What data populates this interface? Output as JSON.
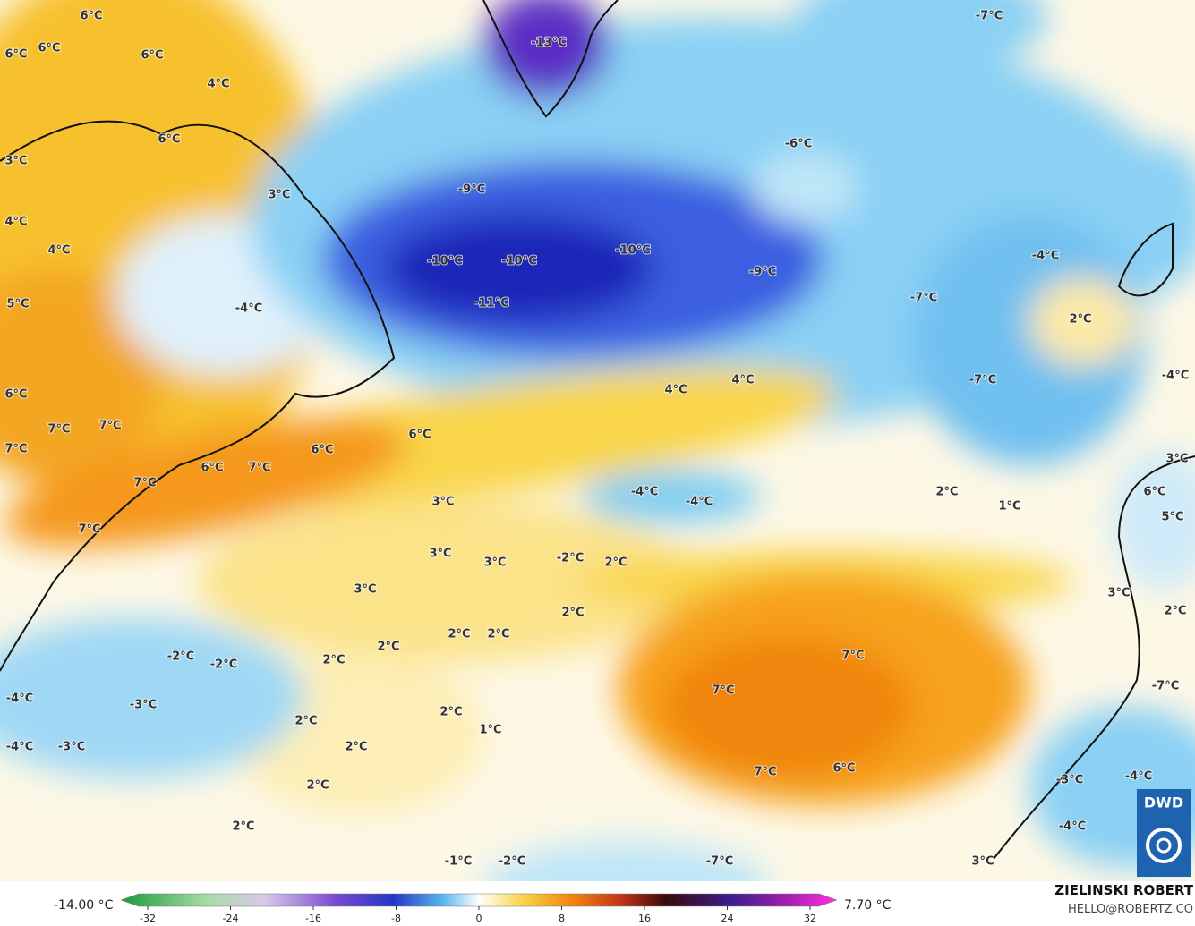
{
  "map": {
    "labels": [
      "-13°C",
      "-7°C",
      "-6°C",
      "-9°C",
      "-10°C",
      "-10°C",
      "-10°C",
      "-9°C",
      "-11°C",
      "-4°C",
      "-7°C",
      "2°C",
      "-4°C",
      "4°C",
      "4°C",
      "-7°C",
      "6°C",
      "6°C",
      "7°C",
      "6°C",
      "7°C",
      "7°C",
      "7°C",
      "7°C",
      "6°C",
      "7°C",
      "3°C",
      "2°C",
      "1°C",
      "-4°C",
      "-4°C",
      "3°C",
      "3°C",
      "3°C",
      "-2°C",
      "2°C",
      "3°C",
      "2°C",
      "2°C",
      "2°C",
      "2°C",
      "2°C",
      "-2°C",
      "-2°C",
      "7°C",
      "7°C",
      "-4°C",
      "-3°C",
      "2°C",
      "2°C",
      "1°C",
      "-4°C",
      "-3°C",
      "2°C",
      "7°C",
      "6°C",
      "2°C",
      "2°C",
      "-1°C",
      "-2°C",
      "-7°C",
      "3°C",
      "-3°C",
      "-4°C",
      "-4°C",
      "-7°C",
      "3°C",
      "2°C",
      "6°C",
      "5°C",
      "-4°C",
      "6°C",
      "6°C",
      "6°C",
      "6°C",
      "4°C",
      "6°C",
      "3°C",
      "3°C",
      "4°C",
      "4°C",
      "5°C"
    ],
    "legend": {
      "min_label": "-14.00 °C",
      "max_label": "7.70 °C",
      "ticks": [
        -32,
        -24,
        -16,
        -8,
        0,
        8,
        16,
        24,
        32
      ]
    },
    "credit": {
      "name": "ZIELINSKI ROBERT",
      "contact": "HELLO@ROBERTZ.CO",
      "logo": "DWD"
    }
  }
}
